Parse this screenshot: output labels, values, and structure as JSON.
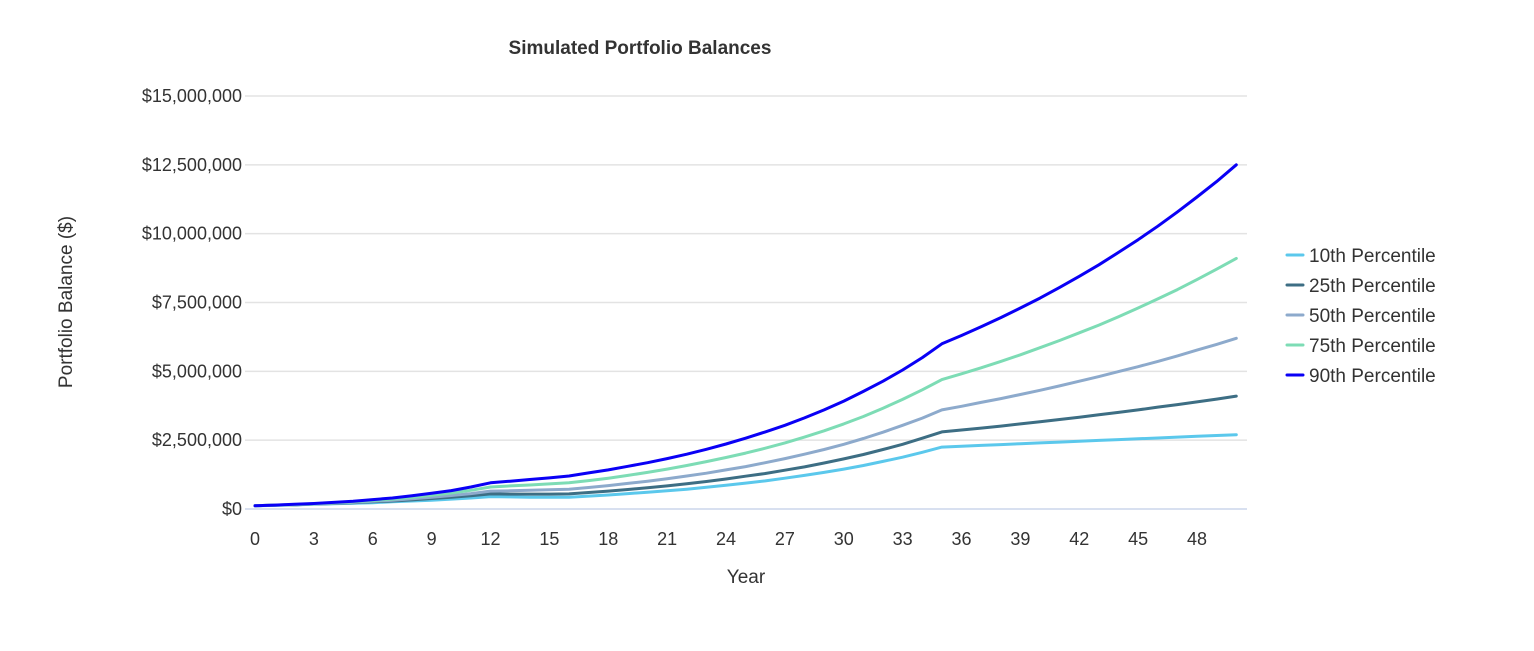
{
  "chart_data": {
    "type": "line",
    "title": "Simulated Portfolio Balances",
    "xlabel": "Year",
    "ylabel": "Portfolio Balance ($)",
    "xlim": [
      0,
      50
    ],
    "ylim": [
      0,
      15000000
    ],
    "value_scale": 1000000,
    "grid": true,
    "legend_position": "right",
    "x_ticks": [
      "0",
      "3",
      "6",
      "9",
      "12",
      "15",
      "18",
      "21",
      "24",
      "27",
      "30",
      "33",
      "36",
      "39",
      "42",
      "45",
      "48"
    ],
    "x_tick_values": [
      0,
      3,
      6,
      9,
      12,
      15,
      18,
      21,
      24,
      27,
      30,
      33,
      36,
      39,
      42,
      45,
      48
    ],
    "y_ticks": [
      "$0",
      "$2,500,000",
      "$5,000,000",
      "$7,500,000",
      "$10,000,000",
      "$12,500,000",
      "$15,000,000"
    ],
    "y_tick_values": [
      0,
      2500000,
      5000000,
      7500000,
      10000000,
      12500000,
      15000000
    ],
    "x": [
      0,
      1,
      2,
      3,
      4,
      5,
      6,
      7,
      8,
      9,
      10,
      11,
      12,
      13,
      14,
      15,
      16,
      17,
      18,
      19,
      20,
      21,
      22,
      23,
      24,
      25,
      26,
      27,
      28,
      29,
      30,
      31,
      32,
      33,
      34,
      35,
      36,
      37,
      38,
      39,
      40,
      41,
      42,
      43,
      44,
      45,
      46,
      47,
      48,
      49,
      50
    ],
    "series": [
      {
        "name": "10th Percentile",
        "color": "#5bc8ec",
        "values": [
          0.12,
          0.13,
          0.15,
          0.17,
          0.19,
          0.21,
          0.23,
          0.26,
          0.29,
          0.32,
          0.36,
          0.4,
          0.45,
          0.44,
          0.43,
          0.43,
          0.43,
          0.47,
          0.51,
          0.56,
          0.61,
          0.66,
          0.72,
          0.79,
          0.86,
          0.94,
          1.02,
          1.12,
          1.22,
          1.33,
          1.45,
          1.58,
          1.73,
          1.88,
          2.06,
          2.25,
          2.28,
          2.31,
          2.34,
          2.37,
          2.4,
          2.43,
          2.46,
          2.49,
          2.52,
          2.55,
          2.58,
          2.61,
          2.64,
          2.67,
          2.7
        ]
      },
      {
        "name": "25th Percentile",
        "color": "#3d6e84",
        "values": [
          0.12,
          0.14,
          0.15,
          0.18,
          0.2,
          0.23,
          0.26,
          0.29,
          0.33,
          0.38,
          0.43,
          0.48,
          0.55,
          0.54,
          0.54,
          0.54,
          0.55,
          0.6,
          0.65,
          0.71,
          0.77,
          0.84,
          0.92,
          1.0,
          1.09,
          1.19,
          1.29,
          1.41,
          1.53,
          1.67,
          1.82,
          1.98,
          2.16,
          2.35,
          2.57,
          2.8,
          2.87,
          2.94,
          3.01,
          3.09,
          3.17,
          3.25,
          3.33,
          3.42,
          3.51,
          3.6,
          3.7,
          3.79,
          3.89,
          3.99,
          4.1
        ]
      },
      {
        "name": "50th Percentile",
        "color": "#8daacc",
        "values": [
          0.12,
          0.14,
          0.16,
          0.18,
          0.21,
          0.24,
          0.28,
          0.32,
          0.37,
          0.43,
          0.49,
          0.56,
          0.65,
          0.66,
          0.68,
          0.7,
          0.72,
          0.78,
          0.85,
          0.93,
          1.01,
          1.1,
          1.2,
          1.3,
          1.42,
          1.54,
          1.68,
          1.83,
          1.99,
          2.16,
          2.35,
          2.56,
          2.79,
          3.04,
          3.3,
          3.6,
          3.73,
          3.87,
          4.01,
          4.16,
          4.31,
          4.47,
          4.64,
          4.81,
          4.99,
          5.17,
          5.36,
          5.56,
          5.77,
          5.98,
          6.2
        ]
      },
      {
        "name": "75th Percentile",
        "color": "#7ddcb5",
        "values": [
          0.12,
          0.14,
          0.16,
          0.19,
          0.23,
          0.26,
          0.31,
          0.36,
          0.42,
          0.5,
          0.58,
          0.68,
          0.8,
          0.84,
          0.87,
          0.91,
          0.95,
          1.03,
          1.12,
          1.22,
          1.33,
          1.45,
          1.58,
          1.72,
          1.87,
          2.03,
          2.21,
          2.4,
          2.61,
          2.84,
          3.09,
          3.36,
          3.66,
          3.98,
          4.33,
          4.7,
          4.91,
          5.13,
          5.36,
          5.6,
          5.86,
          6.12,
          6.4,
          6.68,
          6.98,
          7.3,
          7.63,
          7.97,
          8.33,
          8.71,
          9.1
        ]
      },
      {
        "name": "90th Percentile",
        "color": "#0a00f5",
        "values": [
          0.12,
          0.14,
          0.17,
          0.2,
          0.24,
          0.28,
          0.34,
          0.4,
          0.48,
          0.57,
          0.67,
          0.8,
          0.95,
          1.01,
          1.07,
          1.13,
          1.2,
          1.31,
          1.42,
          1.55,
          1.68,
          1.83,
          1.99,
          2.17,
          2.36,
          2.57,
          2.8,
          3.04,
          3.31,
          3.6,
          3.92,
          4.27,
          4.64,
          5.05,
          5.5,
          6.0,
          6.3,
          6.62,
          6.95,
          7.3,
          7.66,
          8.05,
          8.45,
          8.87,
          9.32,
          9.78,
          10.27,
          10.79,
          11.33,
          11.89,
          12.5
        ]
      }
    ]
  }
}
